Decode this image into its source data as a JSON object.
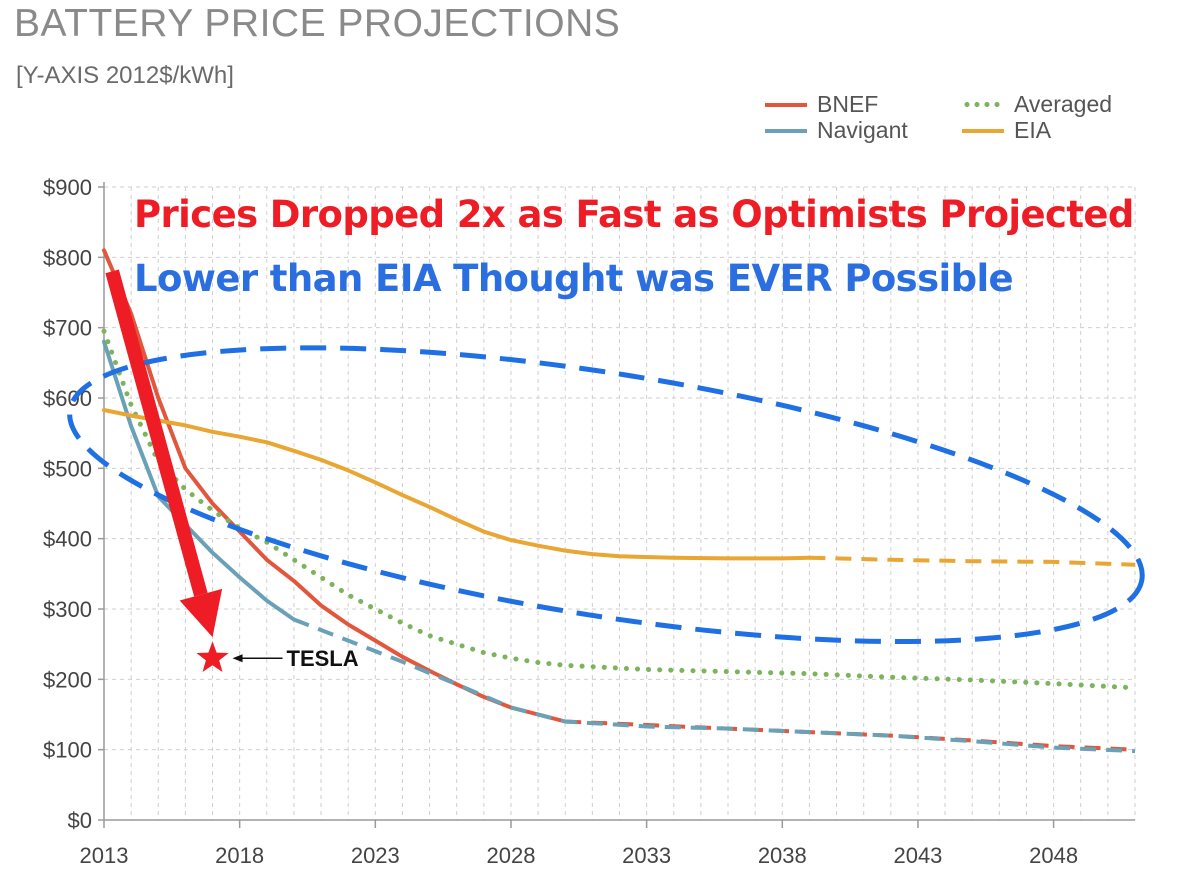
{
  "header": {
    "title": "BATTERY PRICE PROJECTIONS",
    "subtitle": "[Y-AXIS 2012$/kWh]"
  },
  "annotations": {
    "headline_1": "Prices Dropped 2x as Fast as Optimists Projected",
    "headline_2": "Lower than EIA Thought was EVER Possible",
    "tesla_label": "TESLA",
    "tesla_point": {
      "x": 2017,
      "y": 230
    },
    "red_arrow": {
      "from": {
        "x": 2013.3,
        "y": 780
      },
      "to": {
        "x": 2017,
        "y": 260
      }
    },
    "blue_ellipse_region": {
      "x": [
        2011.5,
        2051.5
      ],
      "y": [
        290,
        635
      ]
    }
  },
  "colors": {
    "bnef": "#e2563c",
    "navigant": "#6aa1b6",
    "averaged": "#7cb45c",
    "eia": "#e9a632",
    "headline_1": "#ee1c25",
    "headline_2": "#2a6ee0",
    "arrow": "#ee1c25",
    "ellipse": "#1f6fe5"
  },
  "chart_data": {
    "type": "line",
    "title": "BATTERY PRICE PROJECTIONS",
    "ylabel": "[Y-AXIS 2012$/kWh]",
    "xlabel": "",
    "xlim": [
      2013,
      2051
    ],
    "ylim": [
      0,
      900
    ],
    "x_ticks": [
      "2013",
      "2018",
      "2023",
      "2028",
      "2033",
      "2038",
      "2043",
      "2048"
    ],
    "y_ticks": [
      "$0",
      "$100",
      "$200",
      "$300",
      "$400",
      "$500",
      "$600",
      "$700",
      "$800",
      "$900"
    ],
    "grid": true,
    "legend_position": "top-right",
    "series": [
      {
        "name": "BNEF",
        "solid": [
          [
            2013,
            810
          ],
          [
            2014,
            720
          ],
          [
            2015,
            600
          ],
          [
            2016,
            500
          ],
          [
            2017,
            450
          ],
          [
            2018,
            410
          ],
          [
            2019,
            370
          ],
          [
            2020,
            340
          ],
          [
            2021,
            305
          ],
          [
            2022,
            278
          ],
          [
            2023,
            255
          ],
          [
            2024,
            232
          ],
          [
            2025,
            212
          ],
          [
            2026,
            193
          ],
          [
            2027,
            175
          ],
          [
            2028,
            160
          ],
          [
            2029,
            150
          ],
          [
            2030,
            140
          ]
        ],
        "dashed": [
          [
            2030,
            140
          ],
          [
            2033,
            135
          ],
          [
            2036,
            130
          ],
          [
            2039,
            125
          ],
          [
            2042,
            120
          ],
          [
            2045,
            113
          ],
          [
            2048,
            105
          ],
          [
            2051,
            100
          ]
        ]
      },
      {
        "name": "Navigant",
        "solid": [
          [
            2013,
            680
          ],
          [
            2014,
            560
          ],
          [
            2015,
            460
          ],
          [
            2016,
            420
          ],
          [
            2017,
            380
          ],
          [
            2018,
            345
          ],
          [
            2019,
            312
          ],
          [
            2020,
            285
          ]
        ],
        "dashed": [
          [
            2020,
            285
          ],
          [
            2022,
            255
          ],
          [
            2024,
            225
          ],
          [
            2026,
            193
          ],
          [
            2028,
            160
          ],
          [
            2030,
            140
          ],
          [
            2033,
            133
          ],
          [
            2036,
            130
          ],
          [
            2039,
            125
          ],
          [
            2042,
            120
          ],
          [
            2045,
            112
          ],
          [
            2048,
            103
          ],
          [
            2051,
            98
          ]
        ]
      },
      {
        "name": "Averaged",
        "dotted": [
          [
            2013,
            695
          ],
          [
            2014,
            590
          ],
          [
            2015,
            510
          ],
          [
            2016,
            470
          ],
          [
            2017,
            440
          ],
          [
            2018,
            415
          ],
          [
            2019,
            395
          ],
          [
            2020,
            370
          ],
          [
            2021,
            345
          ],
          [
            2022,
            320
          ],
          [
            2023,
            300
          ],
          [
            2024,
            280
          ],
          [
            2025,
            262
          ],
          [
            2026,
            250
          ],
          [
            2027,
            238
          ],
          [
            2028,
            230
          ],
          [
            2029,
            224
          ],
          [
            2030,
            220
          ],
          [
            2033,
            214
          ],
          [
            2036,
            211
          ],
          [
            2039,
            208
          ],
          [
            2042,
            203
          ],
          [
            2045,
            199
          ],
          [
            2048,
            194
          ],
          [
            2051,
            188
          ]
        ]
      },
      {
        "name": "EIA",
        "solid": [
          [
            2013,
            583
          ],
          [
            2014,
            575
          ],
          [
            2015,
            568
          ],
          [
            2016,
            561
          ],
          [
            2017,
            552
          ],
          [
            2018,
            545
          ],
          [
            2019,
            537
          ],
          [
            2020,
            525
          ],
          [
            2021,
            512
          ],
          [
            2022,
            497
          ],
          [
            2023,
            480
          ],
          [
            2024,
            462
          ],
          [
            2025,
            445
          ],
          [
            2026,
            427
          ],
          [
            2027,
            410
          ],
          [
            2028,
            398
          ],
          [
            2029,
            390
          ],
          [
            2030,
            383
          ],
          [
            2031,
            378
          ],
          [
            2032,
            375
          ],
          [
            2034,
            373
          ],
          [
            2036,
            372
          ],
          [
            2038,
            372
          ],
          [
            2039,
            373
          ]
        ],
        "dashed": [
          [
            2039,
            373
          ],
          [
            2042,
            370
          ],
          [
            2045,
            368
          ],
          [
            2048,
            367
          ],
          [
            2051,
            363
          ]
        ]
      }
    ]
  },
  "legend": [
    {
      "label": "BNEF",
      "style": "solid",
      "color_key": "bnef"
    },
    {
      "label": "Navigant",
      "style": "solid",
      "color_key": "navigant"
    },
    {
      "label": "Averaged",
      "style": "dotted",
      "color_key": "averaged"
    },
    {
      "label": "EIA",
      "style": "solid",
      "color_key": "eia"
    }
  ]
}
